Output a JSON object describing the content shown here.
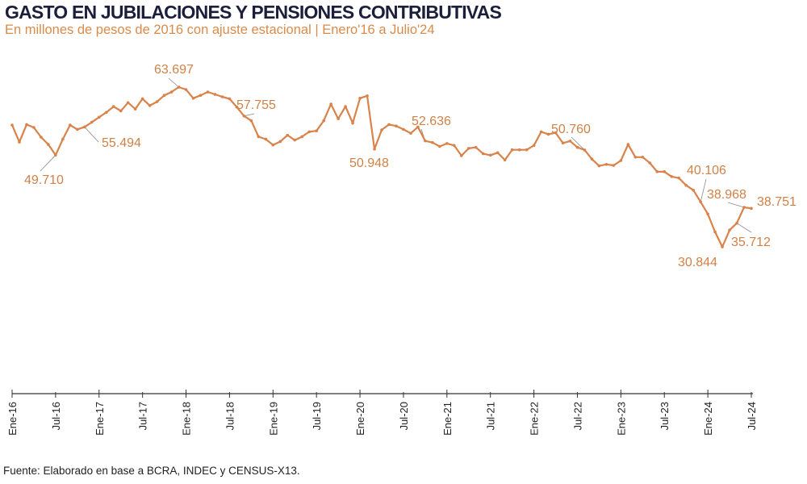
{
  "header": {
    "title": "GASTO EN JUBILACIONES Y PENSIONES CONTRIBUTIVAS",
    "subtitle": "En millones de pesos de 2016 con ajuste estacional | Enero'16 a Julio'24"
  },
  "footer": {
    "source": "Fuente: Elaborado en base a BCRA, INDEC y CENSUS-X13."
  },
  "colors": {
    "line": "#d9834a",
    "labels": "#d08148",
    "title": "#1b1f3b",
    "axis": "#333333"
  },
  "chart_data": {
    "type": "line",
    "title": "GASTO EN JUBILACIONES Y PENSIONES CONTRIBUTIVAS",
    "subtitle": "En millones de pesos de 2016 con ajuste estacional | Enero'16 a Julio'24",
    "xlabel": "",
    "ylabel": "Millones de pesos de 2016",
    "y_axis_visible": false,
    "grid": false,
    "legend": null,
    "x_tick_labels": [
      "Ene-16",
      "Jul-16",
      "Ene-17",
      "Jul-17",
      "Ene-18",
      "Jul-18",
      "Ene-19",
      "Jul-19",
      "Ene-20",
      "Jul-20",
      "Ene-21",
      "Jul-21",
      "Ene-22",
      "Jul-22",
      "Ene-23",
      "Jul-23",
      "Ene-24",
      "Jul-24"
    ],
    "x": [
      "2016-01",
      "2016-02",
      "2016-03",
      "2016-04",
      "2016-05",
      "2016-06",
      "2016-07",
      "2016-08",
      "2016-09",
      "2016-10",
      "2016-11",
      "2016-12",
      "2017-01",
      "2017-02",
      "2017-03",
      "2017-04",
      "2017-05",
      "2017-06",
      "2017-07",
      "2017-08",
      "2017-09",
      "2017-10",
      "2017-11",
      "2017-12",
      "2018-01",
      "2018-02",
      "2018-03",
      "2018-04",
      "2018-05",
      "2018-06",
      "2018-07",
      "2018-08",
      "2018-09",
      "2018-10",
      "2018-11",
      "2018-12",
      "2019-01",
      "2019-02",
      "2019-03",
      "2019-04",
      "2019-05",
      "2019-06",
      "2019-07",
      "2019-08",
      "2019-09",
      "2019-10",
      "2019-11",
      "2019-12",
      "2020-01",
      "2020-02",
      "2020-03",
      "2020-04",
      "2020-05",
      "2020-06",
      "2020-07",
      "2020-08",
      "2020-09",
      "2020-10",
      "2020-11",
      "2020-12",
      "2021-01",
      "2021-02",
      "2021-03",
      "2021-04",
      "2021-05",
      "2021-06",
      "2021-07",
      "2021-08",
      "2021-09",
      "2021-10",
      "2021-11",
      "2021-12",
      "2022-01",
      "2022-02",
      "2022-03",
      "2022-04",
      "2022-05",
      "2022-06",
      "2022-07",
      "2022-08",
      "2022-09",
      "2022-10",
      "2022-11",
      "2022-12",
      "2023-01",
      "2023-02",
      "2023-03",
      "2023-04",
      "2023-05",
      "2023-06",
      "2023-07",
      "2023-08",
      "2023-09",
      "2023-10",
      "2023-11",
      "2023-12",
      "2024-01",
      "2024-02",
      "2024-03",
      "2024-04",
      "2024-05",
      "2024-06",
      "2024-07"
    ],
    "series": [
      {
        "name": "Gasto en jubilaciones y pensiones contributivas",
        "values": [
          55.9,
          52.4,
          56.0,
          55.4,
          53.4,
          51.9,
          49.71,
          53.0,
          55.9,
          55.0,
          55.494,
          56.5,
          57.5,
          58.5,
          59.7,
          58.8,
          60.5,
          59.2,
          61.3,
          59.9,
          60.7,
          62.0,
          62.7,
          63.697,
          63.2,
          61.4,
          62.0,
          62.7,
          62.2,
          61.7,
          61.3,
          59.6,
          57.755,
          56.8,
          53.5,
          53.0,
          51.8,
          52.5,
          53.8,
          52.8,
          53.5,
          54.5,
          54.7,
          56.8,
          60.2,
          57.2,
          59.7,
          56.3,
          61.4,
          61.9,
          50.948,
          54.9,
          56.0,
          55.7,
          55.0,
          54.2,
          55.5,
          52.636,
          52.3,
          51.5,
          52.1,
          51.7,
          49.6,
          51.1,
          51.3,
          50.0,
          49.7,
          50.2,
          48.7,
          50.8,
          50.8,
          50.8,
          51.7,
          54.5,
          54.0,
          54.3,
          52.2,
          52.6,
          51.3,
          50.76,
          48.9,
          47.5,
          47.8,
          47.6,
          48.6,
          51.9,
          49.3,
          49.3,
          48.1,
          46.3,
          46.3,
          45.3,
          45.0,
          43.5,
          42.5,
          40.106,
          37.6,
          33.9,
          30.844,
          34.3,
          35.712,
          38.968,
          38.751
        ]
      }
    ],
    "annotations": [
      {
        "x": "2016-07",
        "label": "49.710"
      },
      {
        "x": "2016-11",
        "label": "55.494"
      },
      {
        "x": "2017-12",
        "label": "63.697"
      },
      {
        "x": "2018-09",
        "label": "57.755"
      },
      {
        "x": "2020-03",
        "label": "50.948"
      },
      {
        "x": "2020-10",
        "label": "52.636"
      },
      {
        "x": "2022-08",
        "label": "50.760"
      },
      {
        "x": "2023-12",
        "label": "40.106"
      },
      {
        "x": "2024-03",
        "label": "30.844"
      },
      {
        "x": "2024-05",
        "label": "35.712"
      },
      {
        "x": "2024-06",
        "label": "38.968"
      },
      {
        "x": "2024-07",
        "label": "38.751"
      }
    ]
  }
}
